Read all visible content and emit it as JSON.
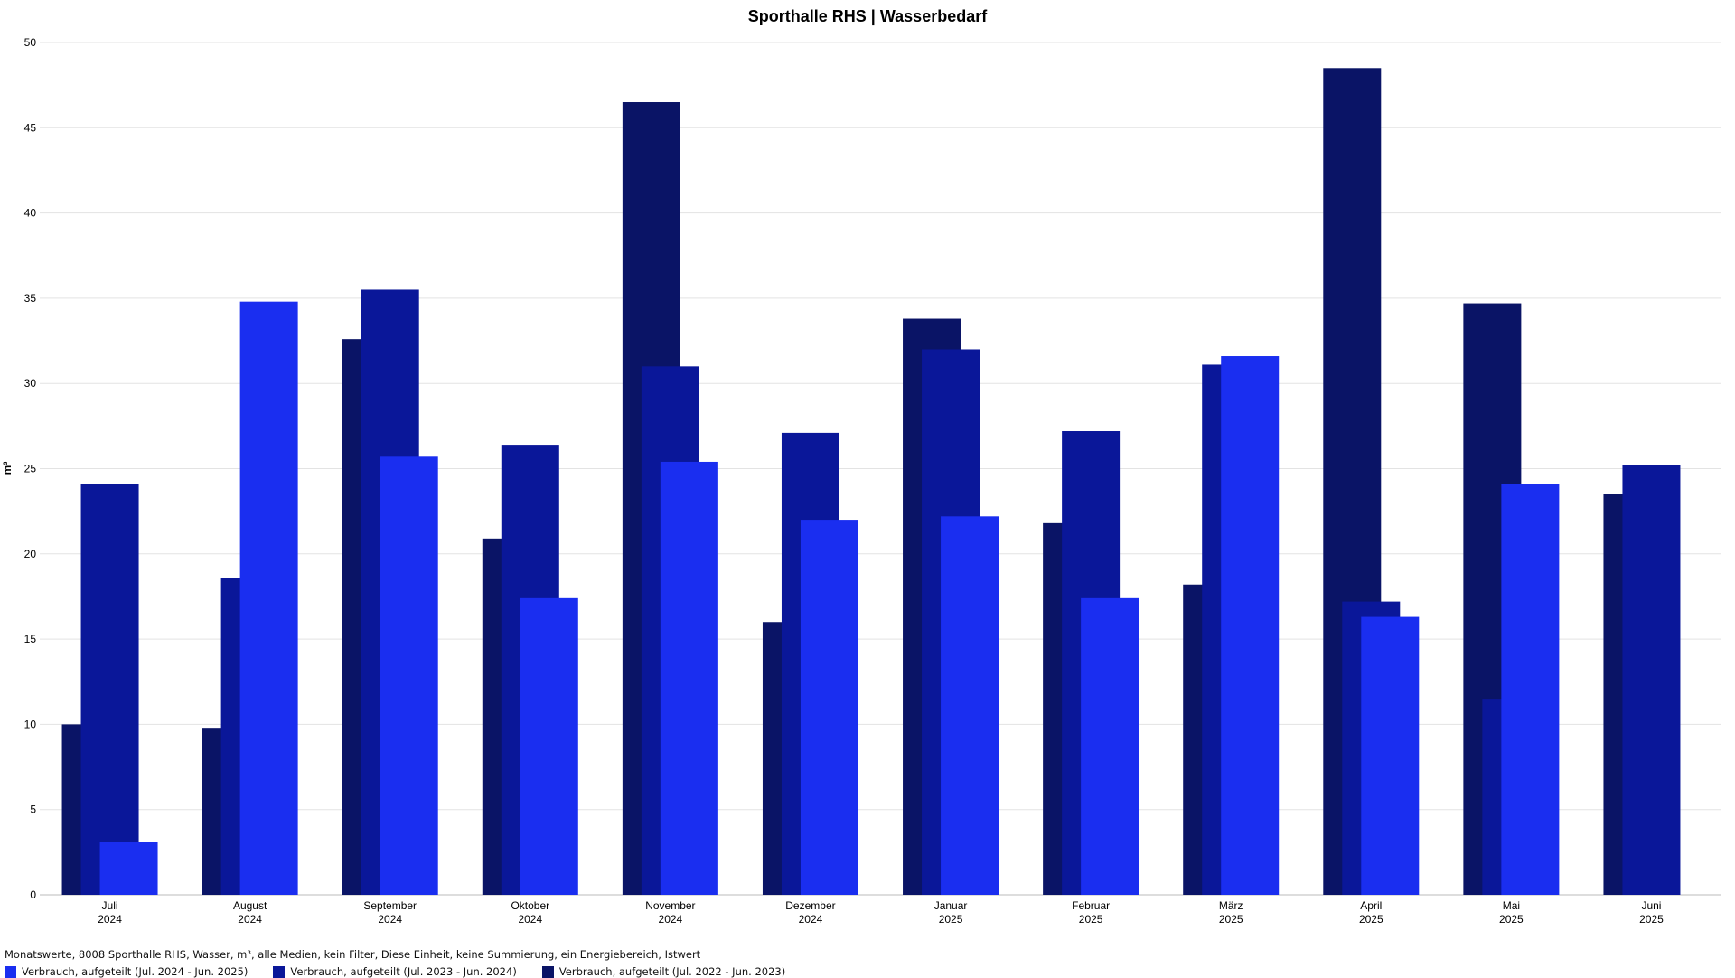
{
  "chart_data": {
    "type": "bar",
    "title": "Sporthalle RHS | Wasserbedarf",
    "ylabel": "m³",
    "xlabel": "",
    "ylim": [
      0,
      50
    ],
    "yticks": [
      "0",
      "5",
      "10",
      "15",
      "20",
      "25",
      "30",
      "35",
      "40",
      "45",
      "50"
    ],
    "grid": true,
    "legend_position": "bottom-left",
    "categories": [
      {
        "month": "Juli",
        "year": "2024"
      },
      {
        "month": "August",
        "year": "2024"
      },
      {
        "month": "September",
        "year": "2024"
      },
      {
        "month": "Oktober",
        "year": "2024"
      },
      {
        "month": "November",
        "year": "2024"
      },
      {
        "month": "Dezember",
        "year": "2024"
      },
      {
        "month": "Januar",
        "year": "2025"
      },
      {
        "month": "Februar",
        "year": "2025"
      },
      {
        "month": "März",
        "year": "2025"
      },
      {
        "month": "April",
        "year": "2025"
      },
      {
        "month": "Mai",
        "year": "2025"
      },
      {
        "month": "Juni",
        "year": "2025"
      }
    ],
    "series": [
      {
        "name": "Verbrauch, aufgeteilt (Jul. 2022 - Jun. 2023)",
        "color": "#0a1466",
        "values": [
          10.0,
          9.8,
          32.6,
          20.9,
          46.5,
          16.0,
          33.8,
          21.8,
          18.2,
          48.5,
          34.7,
          23.5
        ]
      },
      {
        "name": "Verbrauch, aufgeteilt (Jul. 2023 - Jun. 2024)",
        "color": "#0a1799",
        "values": [
          24.1,
          18.6,
          35.5,
          26.4,
          31.0,
          27.1,
          32.0,
          27.2,
          31.1,
          17.2,
          11.5,
          25.2
        ]
      },
      {
        "name": "Verbrauch, aufgeteilt (Jul. 2024 - Jun. 2025)",
        "color": "#1a2ef0",
        "values": [
          3.1,
          34.8,
          25.7,
          17.4,
          25.4,
          22.0,
          22.2,
          17.4,
          31.6,
          16.3,
          24.1,
          null
        ]
      }
    ]
  },
  "footer": {
    "description": "Monatswerte, 8008 Sporthalle RHS, Wasser, m³, alle Medien, kein Filter, Diese Einheit, keine Summierung, ein Energiebereich, Istwert"
  },
  "legend": [
    {
      "label": "Verbrauch, aufgeteilt (Jul. 2024 - Jun. 2025)",
      "color": "#1a2ef0"
    },
    {
      "label": "Verbrauch, aufgeteilt (Jul. 2023 - Jun. 2024)",
      "color": "#0a1799"
    },
    {
      "label": "Verbrauch, aufgeteilt (Jul. 2022 - Jun. 2023)",
      "color": "#0a1466"
    }
  ]
}
